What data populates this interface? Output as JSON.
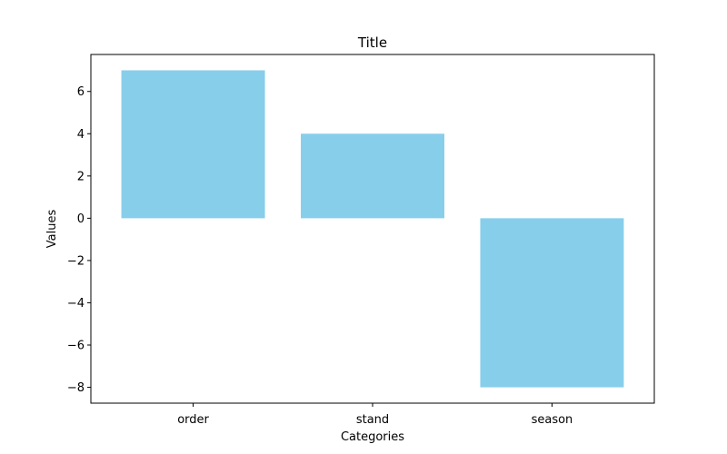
{
  "chart_data": {
    "type": "bar",
    "title": "Title",
    "xlabel": "Categories",
    "ylabel": "Values",
    "categories": [
      "order",
      "stand",
      "season"
    ],
    "values": [
      7,
      4,
      -8
    ],
    "ylim": [
      -8.75,
      7.75
    ],
    "yticks": [
      -8,
      -6,
      -4,
      -2,
      0,
      2,
      4,
      6
    ],
    "ytick_labels": [
      "−8",
      "−6",
      "−4",
      "−2",
      "0",
      "2",
      "4",
      "6"
    ],
    "bar_color": "#87ceeb",
    "grid": false,
    "legend": "none"
  }
}
